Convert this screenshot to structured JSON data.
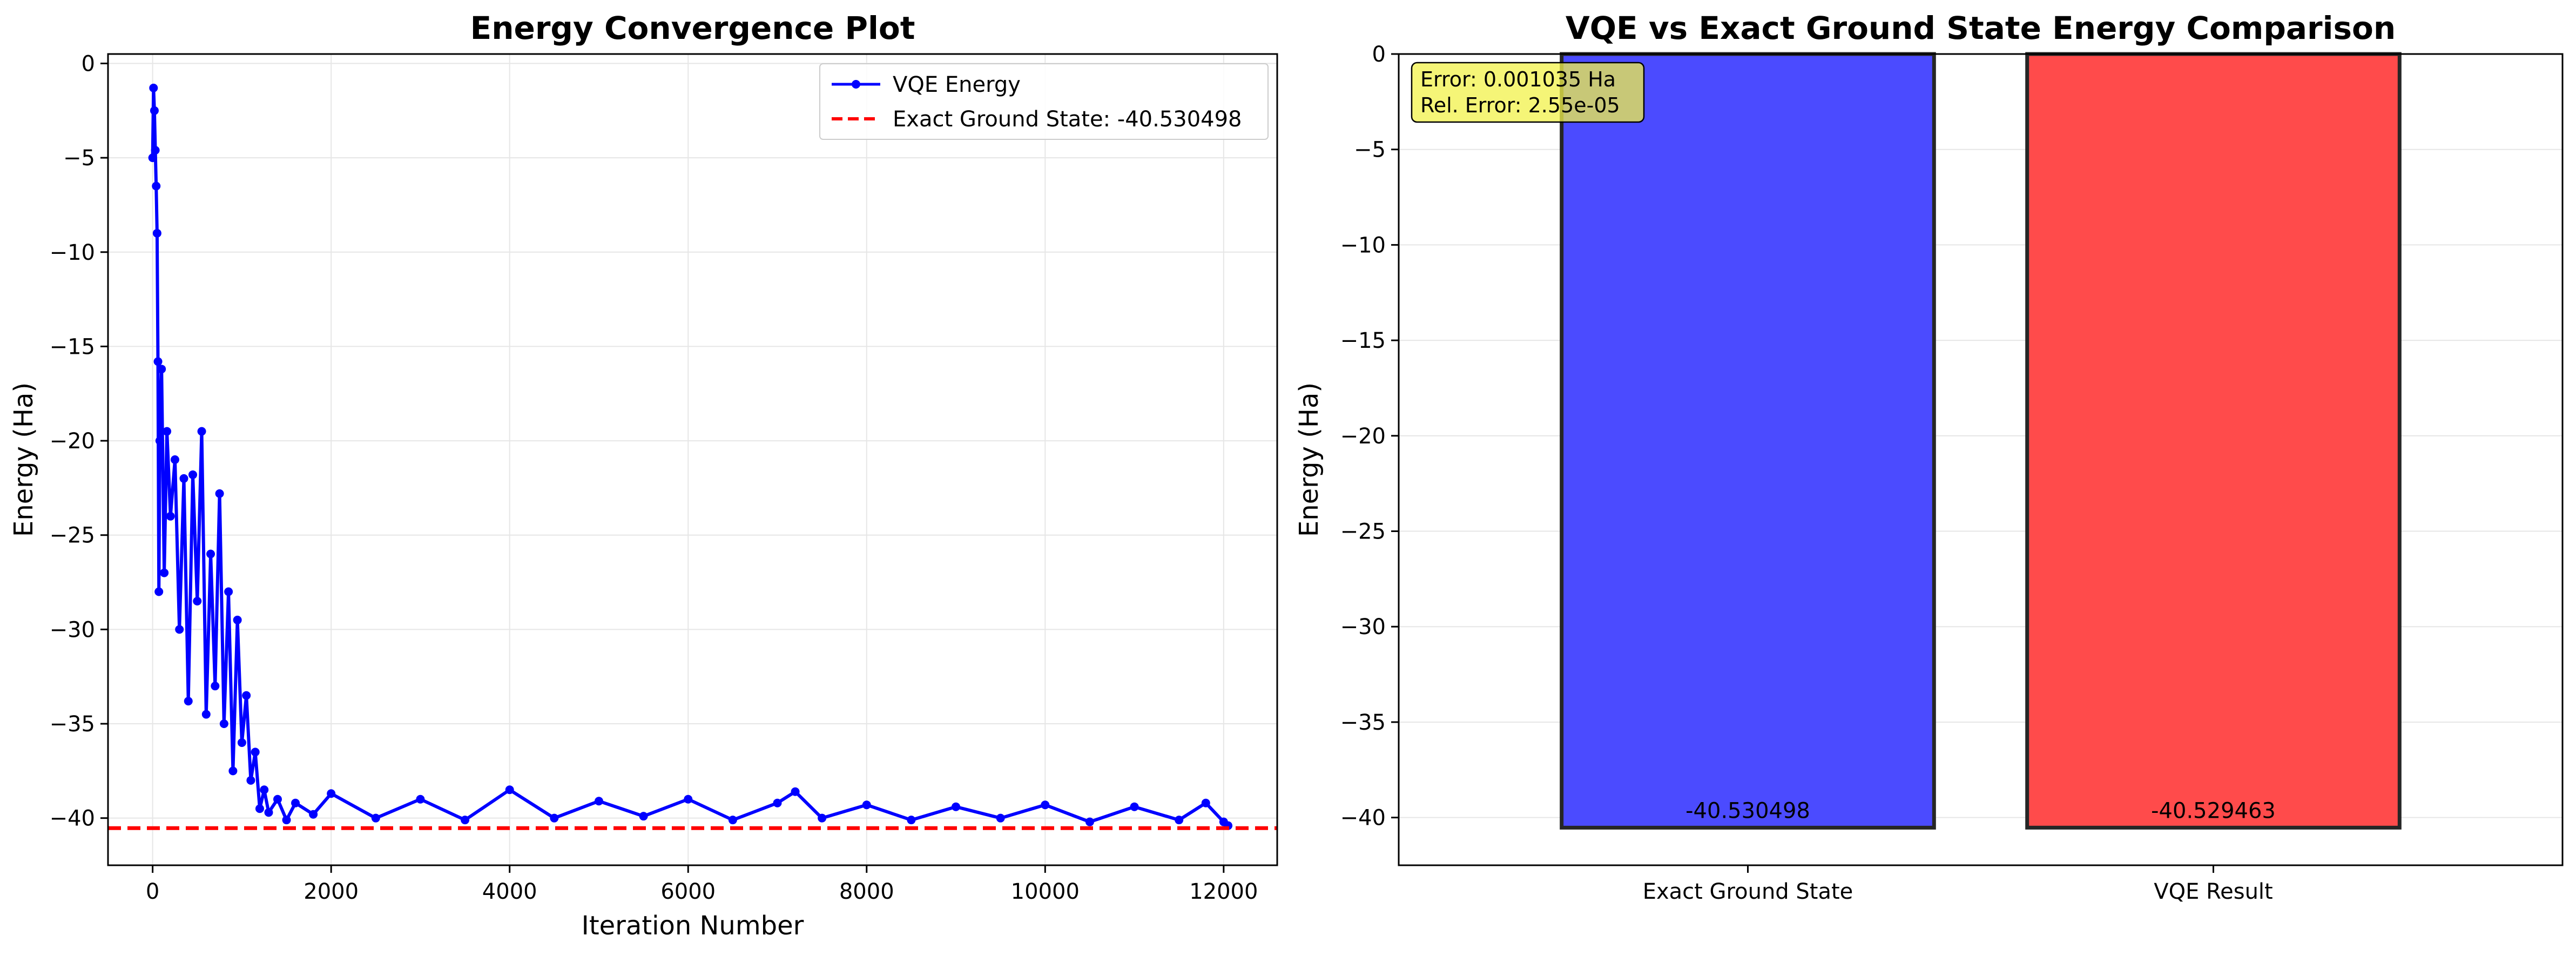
{
  "colors": {
    "vqe_line": "#0000ff",
    "exact_line": "#ff0000",
    "bar_exact": "#4b4bff",
    "bar_vqe": "#ff4b4b",
    "bar_edge": "#262626",
    "grid": "#e6e6e6",
    "annotation_bg": "#f1f14a"
  },
  "chart_data": [
    {
      "type": "line",
      "title": "Energy Convergence Plot",
      "xlabel": "Iteration Number",
      "ylabel": "Energy (Ha)",
      "xlim": [
        -500,
        12600
      ],
      "ylim": [
        -42.5,
        0.5
      ],
      "xticks": [
        0,
        2000,
        4000,
        6000,
        8000,
        10000,
        12000
      ],
      "xtick_labels": [
        "0",
        "2000",
        "4000",
        "6000",
        "8000",
        "10000",
        "12000"
      ],
      "yticks": [
        0,
        -5,
        -10,
        -15,
        -20,
        -25,
        -30,
        -35,
        -40
      ],
      "ytick_labels": [
        "0",
        "−5",
        "−10",
        "−15",
        "−20",
        "−25",
        "−30",
        "−35",
        "−40"
      ],
      "grid": true,
      "legend_position": "top-right",
      "series": [
        {
          "name": "VQE Energy",
          "style": "line-with-markers",
          "x": [
            0,
            10,
            20,
            30,
            40,
            50,
            60,
            70,
            80,
            100,
            130,
            160,
            200,
            250,
            300,
            350,
            400,
            450,
            500,
            550,
            600,
            650,
            700,
            750,
            800,
            850,
            900,
            950,
            1000,
            1050,
            1100,
            1150,
            1200,
            1250,
            1300,
            1400,
            1500,
            1600,
            1800,
            2000,
            2500,
            3000,
            3500,
            4000,
            4500,
            5000,
            5500,
            6000,
            6500,
            7000,
            7200,
            7500,
            8000,
            8500,
            9000,
            9500,
            10000,
            10500,
            11000,
            11500,
            11800,
            12000,
            12050
          ],
          "values": [
            -5.0,
            -1.3,
            -2.5,
            -4.6,
            -6.5,
            -9.0,
            -15.8,
            -28.0,
            -20.0,
            -16.2,
            -27.0,
            -19.5,
            -24.0,
            -21.0,
            -30.0,
            -22.0,
            -33.8,
            -21.8,
            -28.5,
            -19.5,
            -34.5,
            -26.0,
            -33.0,
            -22.8,
            -35.0,
            -28.0,
            -37.5,
            -29.5,
            -36.0,
            -33.5,
            -38.0,
            -36.5,
            -39.5,
            -38.5,
            -39.7,
            -39.0,
            -40.1,
            -39.2,
            -39.8,
            -38.7,
            -40.0,
            -39.0,
            -40.1,
            -38.5,
            -40.0,
            -39.1,
            -39.9,
            -39.0,
            -40.1,
            -39.2,
            -38.6,
            -40.0,
            -39.3,
            -40.1,
            -39.4,
            -40.0,
            -39.3,
            -40.2,
            -39.4,
            -40.1,
            -39.2,
            -40.2,
            -40.4
          ]
        },
        {
          "name": "Exact Ground State: -40.530498",
          "style": "dashed",
          "y": -40.530498
        }
      ]
    },
    {
      "type": "bar",
      "title": "VQE vs Exact Ground State Energy Comparison",
      "xlabel": "",
      "ylabel": "Energy (Ha)",
      "ylim": [
        -42.5,
        0
      ],
      "yticks": [
        0,
        -5,
        -10,
        -15,
        -20,
        -25,
        -30,
        -35,
        -40
      ],
      "ytick_labels": [
        "0",
        "−5",
        "−10",
        "−15",
        "−20",
        "−25",
        "−30",
        "−35",
        "−40"
      ],
      "grid": true,
      "categories": [
        "Exact Ground State",
        "VQE Result"
      ],
      "values": [
        -40.530498,
        -40.529463
      ],
      "value_labels": [
        "-40.530498",
        "-40.529463"
      ],
      "annotation": {
        "position": "top-left",
        "lines": [
          "Error: 0.001035 Ha",
          "Rel. Error: 2.55e-05"
        ]
      }
    }
  ]
}
